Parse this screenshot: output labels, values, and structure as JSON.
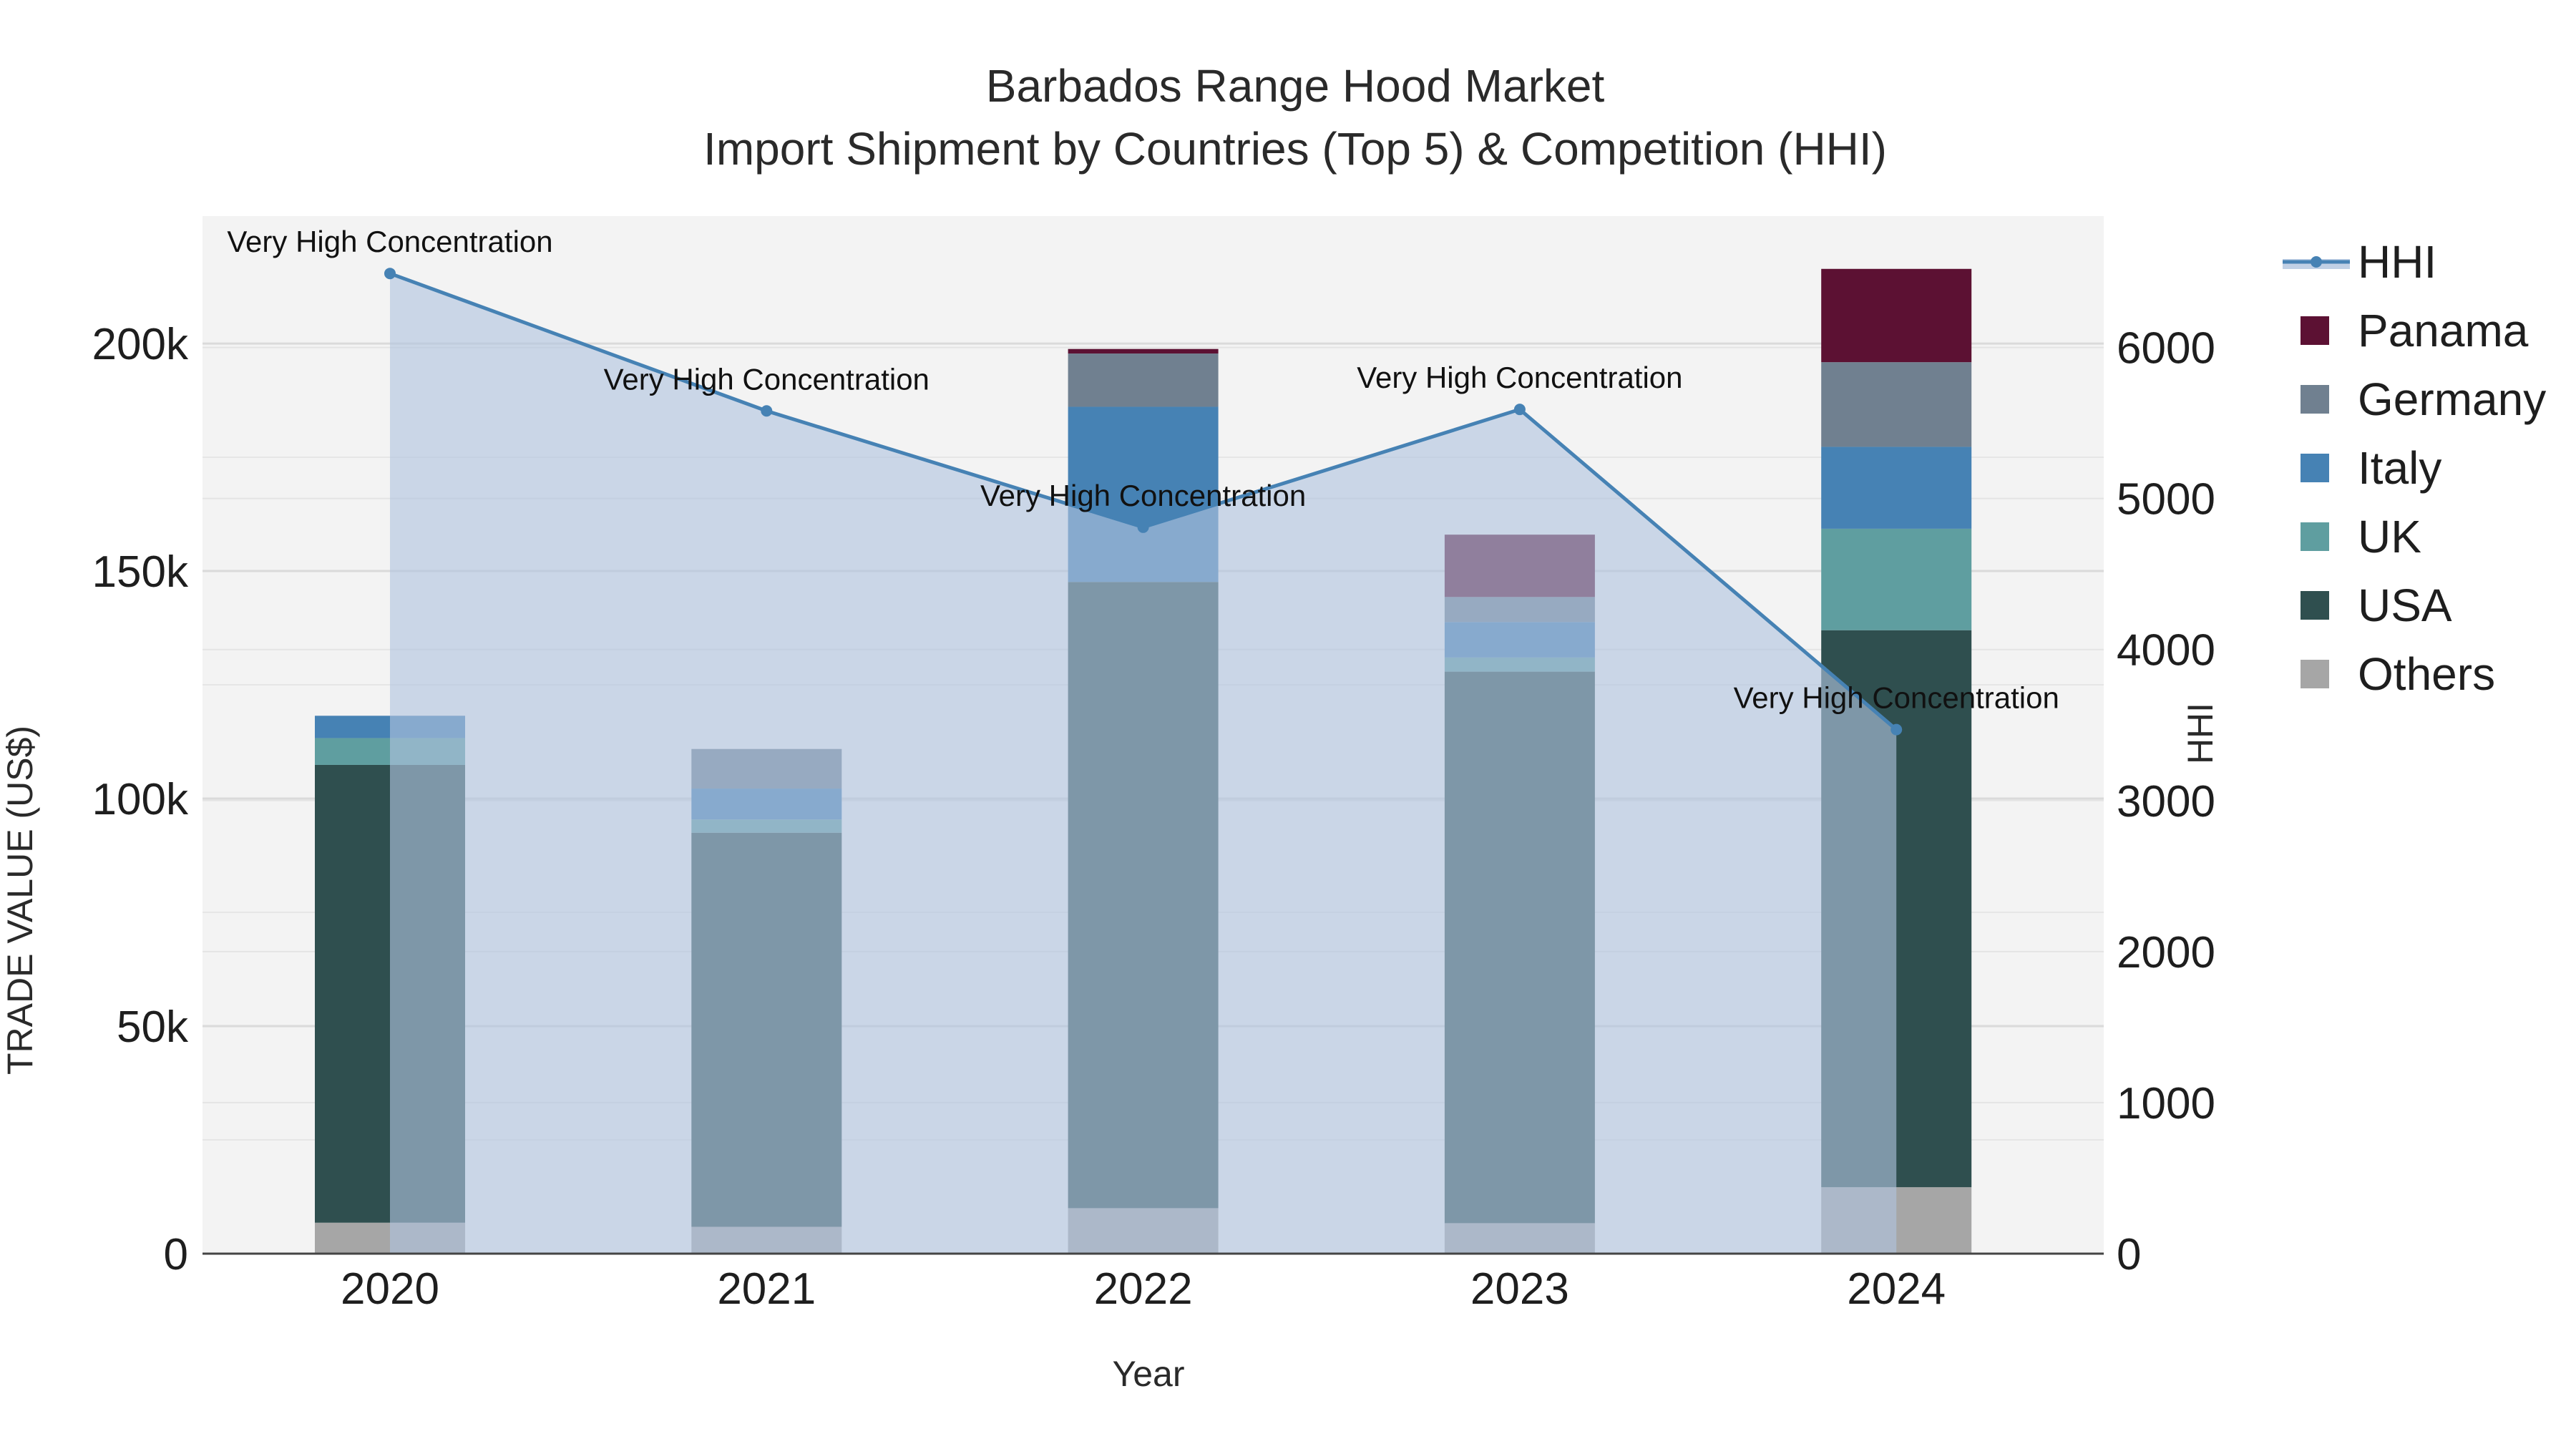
{
  "chart_data": {
    "type": "bar",
    "title": "Barbados Range Hood Market",
    "subtitle": "Import Shipment by Countries (Top 5) & Competition (HHI)",
    "xlabel": "Year",
    "ylabel": "TRADE VALUE (US$)",
    "y2label": "HHI",
    "categories": [
      "2020",
      "2021",
      "2022",
      "2023",
      "2024"
    ],
    "ylim": [
      0,
      228000
    ],
    "y2lim": [
      0,
      6870
    ],
    "yticks": [
      0,
      50000,
      100000,
      150000,
      200000
    ],
    "ytick_labels": [
      "0",
      "50k",
      "100k",
      "150k",
      "200k"
    ],
    "y2ticks": [
      0,
      1000,
      2000,
      3000,
      4000,
      5000,
      6000
    ],
    "y2tick_labels": [
      "0",
      "1000",
      "2000",
      "3000",
      "4000",
      "5000",
      "6000"
    ],
    "grid": true,
    "legend_position": "right",
    "series": [
      {
        "name": "Others",
        "color": "#a6a6a6",
        "values": [
          6800,
          5900,
          10000,
          6700,
          14600
        ]
      },
      {
        "name": "USA",
        "color": "#2f4f4f",
        "values": [
          100600,
          86600,
          137600,
          121200,
          122400
        ]
      },
      {
        "name": "UK",
        "color": "#5f9ea0",
        "values": [
          5900,
          2900,
          0,
          3100,
          22300
        ]
      },
      {
        "name": "Italy",
        "color": "#4682b4",
        "values": [
          4900,
          6800,
          38500,
          7800,
          18000
        ]
      },
      {
        "name": "Germany",
        "color": "#708090",
        "values": [
          0,
          8700,
          11700,
          5500,
          18600
        ]
      },
      {
        "name": "Panama",
        "color": "#5c1133",
        "values": [
          0,
          0,
          1000,
          13700,
          20500
        ]
      }
    ],
    "hhi": {
      "name": "HHI",
      "color": "#4682b4",
      "fill_color": "#b0c4de",
      "values": [
        6490,
        5580,
        4810,
        5590,
        3470
      ],
      "annotations": [
        "Very High Concentration",
        "Very High Concentration",
        "Very High Concentration",
        "Very High Concentration",
        "Very High Concentration"
      ]
    },
    "legend": [
      "HHI",
      "Panama",
      "Germany",
      "Italy",
      "UK",
      "USA",
      "Others"
    ]
  }
}
